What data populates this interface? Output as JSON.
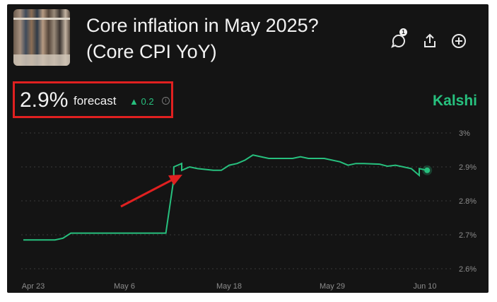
{
  "header": {
    "title": "Core inflation in May 2025? (Core CPI YoY)",
    "comment_count": "1",
    "icons": [
      "comment-icon",
      "share-icon",
      "add-icon"
    ]
  },
  "forecast": {
    "value": "2.9%",
    "label": "forecast",
    "delta": "▲ 0.2",
    "info_icon": "i"
  },
  "brand": "Kalshi",
  "colors": {
    "line": "#27c07e",
    "accent": "#27c07e",
    "annotation": "#e02020",
    "background": "#141414"
  },
  "chart_data": {
    "type": "line",
    "title": "",
    "xlabel": "",
    "ylabel": "",
    "x_ticks": [
      "Apr 23",
      "May 6",
      "May 18",
      "May 29",
      "Jun 10"
    ],
    "y_ticks": [
      "3%",
      "2.9%",
      "2.8%",
      "2.7%",
      "2.6%"
    ],
    "ylim": [
      2.6,
      3.0
    ],
    "grid": true,
    "series": [
      {
        "values": [
          [
            "2025-04-23",
            2.685
          ],
          [
            "2025-04-27",
            2.685
          ],
          [
            "2025-04-28",
            2.69
          ],
          [
            "2025-04-29",
            2.705
          ],
          [
            "2025-05-08",
            2.705
          ],
          [
            "2025-05-11",
            2.705
          ],
          [
            "2025-05-12",
            2.865
          ],
          [
            "2025-05-12",
            2.9
          ],
          [
            "2025-05-13",
            2.91
          ],
          [
            "2025-05-13",
            2.89
          ],
          [
            "2025-05-14",
            2.9
          ],
          [
            "2025-05-15",
            2.895
          ],
          [
            "2025-05-17",
            2.89
          ],
          [
            "2025-05-18",
            2.89
          ],
          [
            "2025-05-19",
            2.905
          ],
          [
            "2025-05-20",
            2.91
          ],
          [
            "2025-05-21",
            2.92
          ],
          [
            "2025-05-22",
            2.935
          ],
          [
            "2025-05-23",
            2.93
          ],
          [
            "2025-05-24",
            2.925
          ],
          [
            "2025-05-27",
            2.925
          ],
          [
            "2025-05-28",
            2.93
          ],
          [
            "2025-05-29",
            2.925
          ],
          [
            "2025-05-31",
            2.925
          ],
          [
            "2025-06-02",
            2.915
          ],
          [
            "2025-06-03",
            2.905
          ],
          [
            "2025-06-04",
            2.91
          ],
          [
            "2025-06-05",
            2.91
          ],
          [
            "2025-06-07",
            2.908
          ],
          [
            "2025-06-08",
            2.902
          ],
          [
            "2025-06-09",
            2.905
          ],
          [
            "2025-06-10",
            2.9
          ],
          [
            "2025-06-11",
            2.895
          ],
          [
            "2025-06-12",
            2.875
          ],
          [
            "2025-06-12",
            2.895
          ],
          [
            "2025-06-13",
            2.89
          ]
        ]
      }
    ],
    "current_point": [
      "2025-06-13",
      2.89
    ]
  }
}
